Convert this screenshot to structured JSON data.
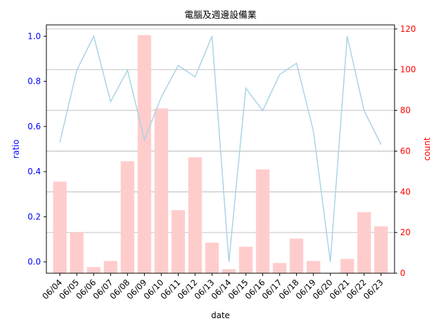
{
  "chart_data": {
    "type": "bar",
    "title": "電腦及週邊設備業",
    "xlabel": "date",
    "ylabel_left": "ratio",
    "ylabel_right": "count",
    "categories": [
      "06/04",
      "06/05",
      "06/06",
      "06/07",
      "06/08",
      "06/09",
      "06/10",
      "06/11",
      "06/12",
      "06/13",
      "06/14",
      "06/15",
      "06/16",
      "06/17",
      "06/18",
      "06/19",
      "06/20",
      "06/21",
      "06/22",
      "06/23"
    ],
    "series": [
      {
        "type": "bar",
        "axis": "right",
        "values": [
          45,
          20,
          3,
          6,
          55,
          117,
          81,
          31,
          57,
          15,
          2,
          13,
          51,
          5,
          17,
          6,
          0,
          7,
          30,
          23
        ]
      },
      {
        "type": "line",
        "axis": "left",
        "values": [
          0.53,
          0.85,
          1.0,
          0.71,
          0.85,
          0.54,
          0.73,
          0.87,
          0.82,
          1.0,
          0.0,
          0.77,
          0.67,
          0.83,
          0.88,
          0.58,
          0.0,
          1.0,
          0.67,
          0.52
        ]
      }
    ],
    "ylim_left": [
      -0.05,
      1.05
    ],
    "ylim_right": [
      0,
      122
    ],
    "yticks_left": [
      "0.0",
      "0.2",
      "0.4",
      "0.6",
      "0.8",
      "1.0"
    ],
    "yticks_right": [
      "0",
      "20",
      "40",
      "60",
      "80",
      "100",
      "120"
    ],
    "grid": "horizontal lines at right-axis ticks",
    "colors": {
      "bar": "#ffcccc",
      "line": "#a8d4e6",
      "left_axis": "#0000ff",
      "right_axis": "#ff0000",
      "grid": "#b0b0b0",
      "text": "#000000"
    }
  }
}
